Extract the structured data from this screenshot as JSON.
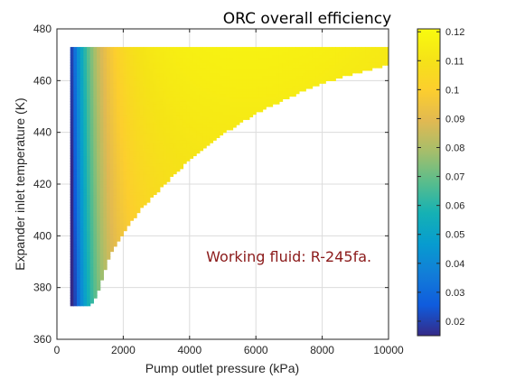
{
  "chart_data": {
    "type": "heatmap",
    "title": "ORC overall efficiency",
    "xlabel": "Pump outlet pressure (kPa)",
    "ylabel": "Expander inlet temperature (K)",
    "xlim": [
      0,
      10000
    ],
    "ylim": [
      360,
      480
    ],
    "xticks": [
      0,
      2000,
      4000,
      6000,
      8000,
      10000
    ],
    "yticks": [
      360,
      380,
      400,
      420,
      440,
      460,
      480
    ],
    "grid": true,
    "colormap": "parula",
    "colorbar": {
      "range": [
        0.015,
        0.121
      ],
      "ticks": [
        0.02,
        0.03,
        0.04,
        0.05,
        0.06,
        0.07,
        0.08,
        0.09,
        0.1,
        0.11,
        0.12
      ]
    },
    "region": {
      "x_min": 400,
      "y_min": 373,
      "y_max": 473,
      "boundary_x": [
        1000,
        1150,
        1250,
        1350,
        1450,
        1600,
        1800,
        2000,
        2300,
        2600,
        2900,
        3200,
        3600,
        4000,
        4500,
        5000,
        5500,
        6000,
        6500,
        7000,
        7500,
        8000,
        8500,
        9000,
        9500,
        10000
      ],
      "boundary_y": [
        373,
        376,
        379,
        383,
        387,
        392,
        397,
        401,
        406,
        411,
        415,
        419,
        424,
        429,
        434,
        439,
        443,
        447,
        450,
        453,
        456,
        458.5,
        460.5,
        462.5,
        464,
        466
      ]
    },
    "efficiency_model": {
      "description": "efficiency at left edge ~0.015 rising to ~0.12 near 5000-6000 kPa at top",
      "min": 0.015,
      "max": 0.12
    },
    "annotations": [
      {
        "text": "Working fluid: R-245fa.",
        "x": 4500,
        "y": 390,
        "color": "#8b1a1a"
      }
    ]
  }
}
